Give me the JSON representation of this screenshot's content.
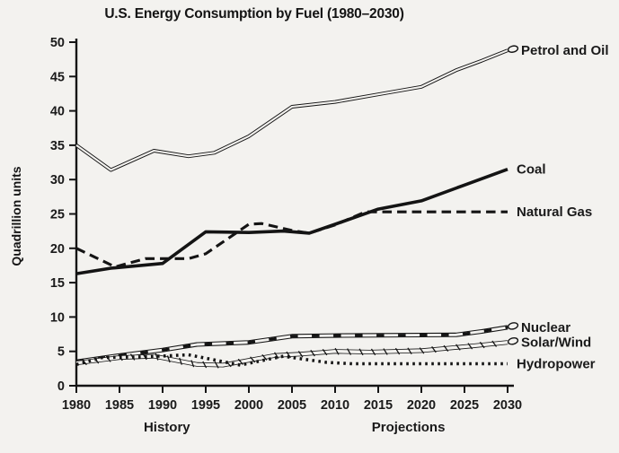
{
  "page": {
    "background": "#f3f2ef",
    "ink": "#141414"
  },
  "chart_data": {
    "type": "line",
    "title": "U.S. Energy Consumption by Fuel (1980–2030)",
    "xlabel": "",
    "ylabel": "Quadrillion units",
    "xlim": [
      1980,
      2030
    ],
    "ylim": [
      0,
      50
    ],
    "x_ticks": [
      1980,
      1985,
      1990,
      1995,
      2000,
      2005,
      2010,
      2015,
      2020,
      2025,
      2030
    ],
    "y_ticks": [
      0,
      5,
      10,
      15,
      20,
      25,
      30,
      35,
      40,
      45,
      50
    ],
    "grid": false,
    "legend_position": "labels-at-line-ends-right",
    "zone_labels": [
      {
        "label": "History",
        "x": 1990.5
      },
      {
        "label": "Projections",
        "x": 2018.5
      }
    ],
    "series": [
      {
        "name": "Petrol and Oil",
        "style": "double-line",
        "end_loop": true,
        "points": [
          [
            1980,
            35
          ],
          [
            1984,
            31.4
          ],
          [
            1989,
            34.2
          ],
          [
            1993,
            33.4
          ],
          [
            1996,
            33.9
          ],
          [
            2000,
            36.3
          ],
          [
            2005,
            40.6
          ],
          [
            2010,
            41.3
          ],
          [
            2015,
            42.4
          ],
          [
            2020,
            43.5
          ],
          [
            2024,
            45.9
          ],
          [
            2027,
            47.3
          ],
          [
            2030,
            48.8
          ]
        ]
      },
      {
        "name": "Coal",
        "style": "solid-thick",
        "end_loop": false,
        "points": [
          [
            1980,
            16.3
          ],
          [
            1984,
            17.1
          ],
          [
            1990,
            17.8
          ],
          [
            1995,
            22.4
          ],
          [
            2000,
            22.3
          ],
          [
            2004,
            22.5
          ],
          [
            2007,
            22.2
          ],
          [
            2010,
            23.5
          ],
          [
            2015,
            25.7
          ],
          [
            2020,
            26.9
          ],
          [
            2025,
            29.2
          ],
          [
            2030,
            31.5
          ]
        ]
      },
      {
        "name": "Natural Gas",
        "style": "dashed",
        "end_loop": false,
        "points": [
          [
            1980,
            20
          ],
          [
            1984.5,
            17.3
          ],
          [
            1988,
            18.5
          ],
          [
            1993,
            18.5
          ],
          [
            1995,
            19.2
          ],
          [
            2000,
            23.5
          ],
          [
            2001.5,
            23.6
          ],
          [
            2005,
            22.6
          ],
          [
            2007,
            22.2
          ],
          [
            2010,
            23.4
          ],
          [
            2013.5,
            25.3
          ],
          [
            2020,
            25.3
          ],
          [
            2030,
            25.3
          ]
        ]
      },
      {
        "name": "Nuclear",
        "style": "tube-squares",
        "end_loop": true,
        "points": [
          [
            1980,
            3.5
          ],
          [
            1985,
            4.4
          ],
          [
            1990,
            5.2
          ],
          [
            1994,
            6
          ],
          [
            2000,
            6.3
          ],
          [
            2005,
            7.2
          ],
          [
            2010,
            7.3
          ],
          [
            2024,
            7.4
          ],
          [
            2027,
            7.9
          ],
          [
            2030,
            8.5
          ]
        ]
      },
      {
        "name": "Solar/Wind",
        "style": "tube-hatch",
        "end_loop": true,
        "points": [
          [
            1980,
            3.3
          ],
          [
            1985,
            4.1
          ],
          [
            1989,
            4.3
          ],
          [
            1994,
            3.1
          ],
          [
            1997,
            3
          ],
          [
            2003,
            4.4
          ],
          [
            2006,
            4.6
          ],
          [
            2010,
            5
          ],
          [
            2014,
            4.9
          ],
          [
            2020,
            5.1
          ],
          [
            2026,
            5.8
          ],
          [
            2030,
            6.3
          ]
        ]
      },
      {
        "name": "Hydropower",
        "style": "dotted",
        "end_loop": false,
        "points": [
          [
            1980,
            3.1
          ],
          [
            1983,
            4.1
          ],
          [
            1988,
            4.2
          ],
          [
            1993,
            4.5
          ],
          [
            1999,
            3
          ],
          [
            2004,
            4.3
          ],
          [
            2009,
            3.4
          ],
          [
            2012,
            3.2
          ],
          [
            2020,
            3.2
          ],
          [
            2030,
            3.2
          ]
        ]
      }
    ]
  }
}
